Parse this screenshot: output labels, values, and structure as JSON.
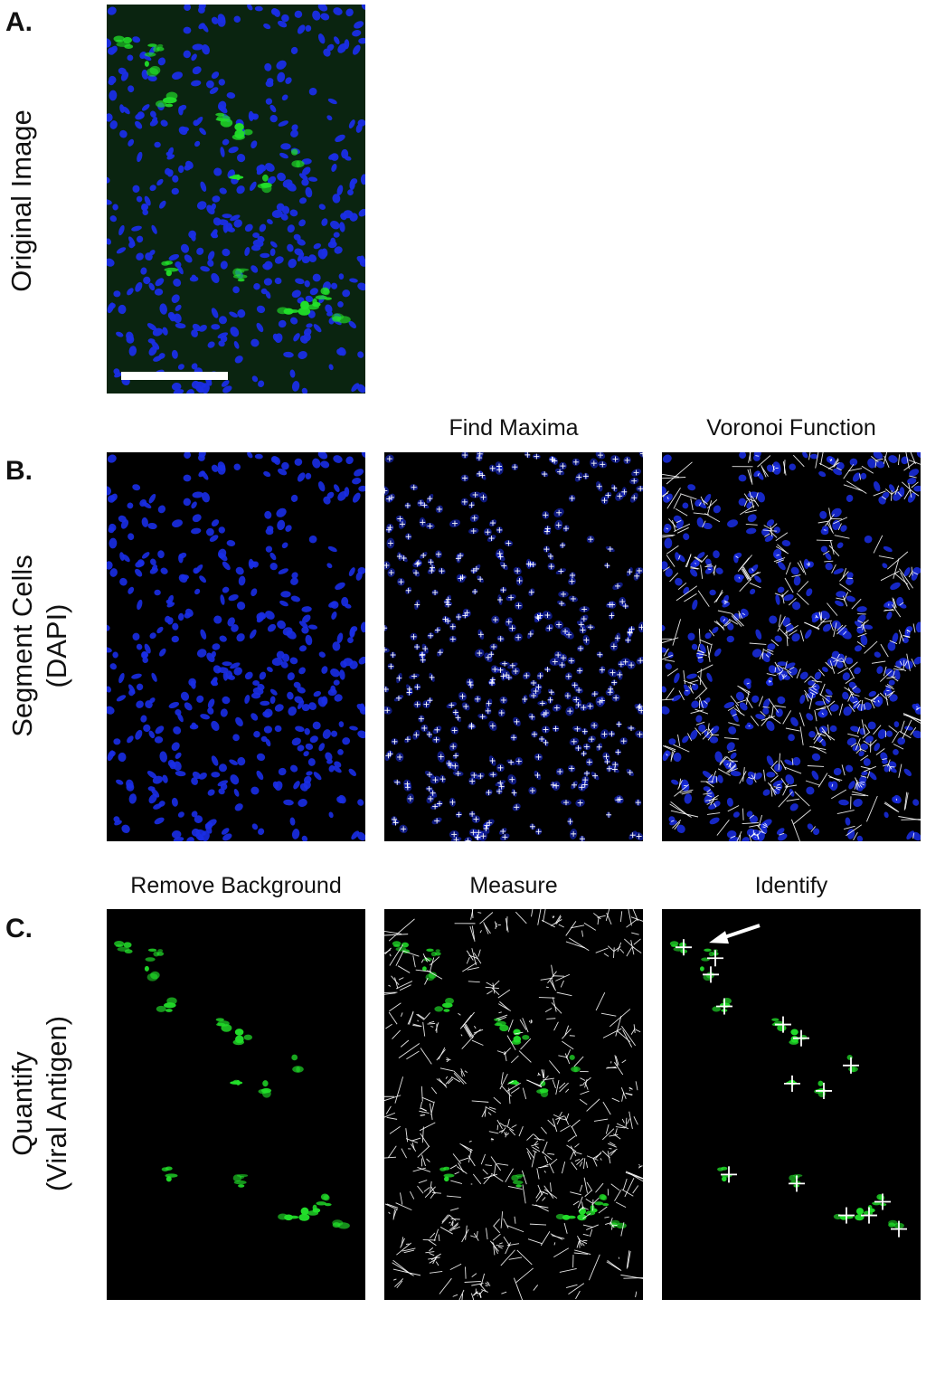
{
  "figure": {
    "rows": [
      {
        "id": "A",
        "letter": "A.",
        "row_label": "Original Image",
        "panels": [
          {
            "key": "original",
            "title": "",
            "theme": "orig",
            "scale_bar": true
          }
        ]
      },
      {
        "id": "B",
        "letter": "B.",
        "row_label_line1": "Segment Cells",
        "row_label_line2": "(DAPI)",
        "panels": [
          {
            "key": "dapi",
            "title": "",
            "theme": "dapi"
          },
          {
            "key": "maxima",
            "title": "Find Maxima",
            "theme": "maxima"
          },
          {
            "key": "voronoi",
            "title": "Voronoi Function",
            "theme": "voronoi"
          }
        ]
      },
      {
        "id": "C",
        "letter": "C.",
        "row_label_line1": "Quantify",
        "row_label_line2": "(Viral Antigen)",
        "panels": [
          {
            "key": "background",
            "title": "Remove Background",
            "theme": "green"
          },
          {
            "key": "measure",
            "title": "Measure",
            "theme": "measure"
          },
          {
            "key": "identify",
            "title": "Identify",
            "theme": "identify",
            "arrow": true
          }
        ]
      }
    ]
  },
  "colors": {
    "nucleus_blue": "#1a2ee6",
    "antigen_green": "#22e02a",
    "background_black": "#000000",
    "original_background": "#0a2410",
    "overlay_white": "#ffffff"
  }
}
